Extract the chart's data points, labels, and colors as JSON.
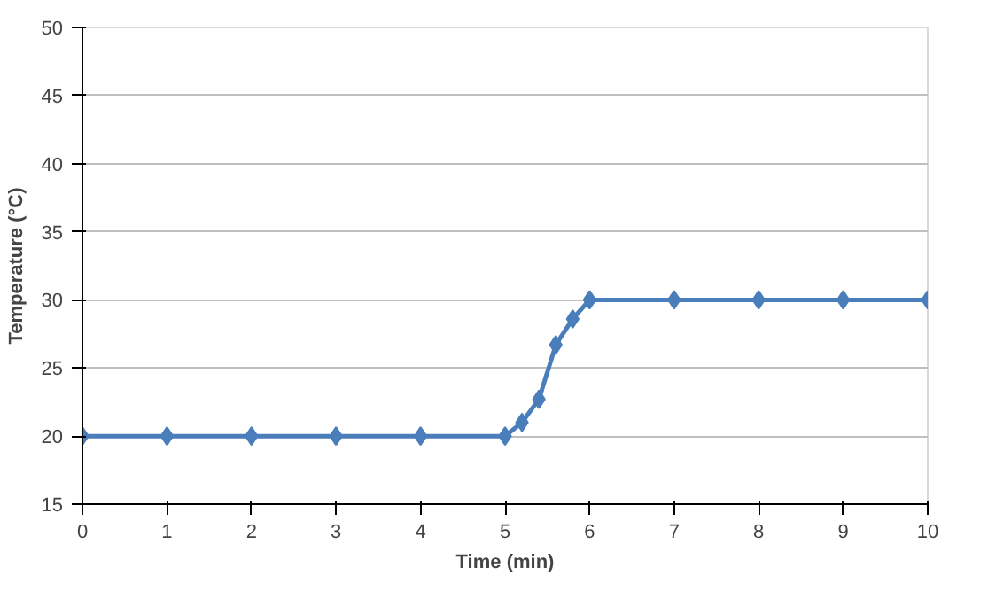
{
  "chart_data": {
    "type": "line",
    "xlabel": "Time (min)",
    "ylabel": "Temperature (°C)",
    "x": [
      0,
      1,
      2,
      3,
      4,
      5,
      5.2,
      5.4,
      5.6,
      5.8,
      6,
      7,
      8,
      9,
      10
    ],
    "series": [
      {
        "color": "#4a7ebb",
        "values": [
          20,
          20,
          20,
          20,
          20,
          20,
          21,
          22.7,
          26.7,
          28.6,
          30,
          30,
          30,
          30,
          30
        ]
      }
    ],
    "xlim": [
      0,
      10
    ],
    "xticks": [
      0,
      1,
      2,
      3,
      4,
      5,
      6,
      7,
      8,
      9,
      10
    ],
    "ylim": [
      15,
      50
    ],
    "yticks": [
      15,
      20,
      25,
      30,
      35,
      40,
      45,
      50
    ],
    "grid": "y",
    "marker": "diamond",
    "line_style": "solid"
  }
}
